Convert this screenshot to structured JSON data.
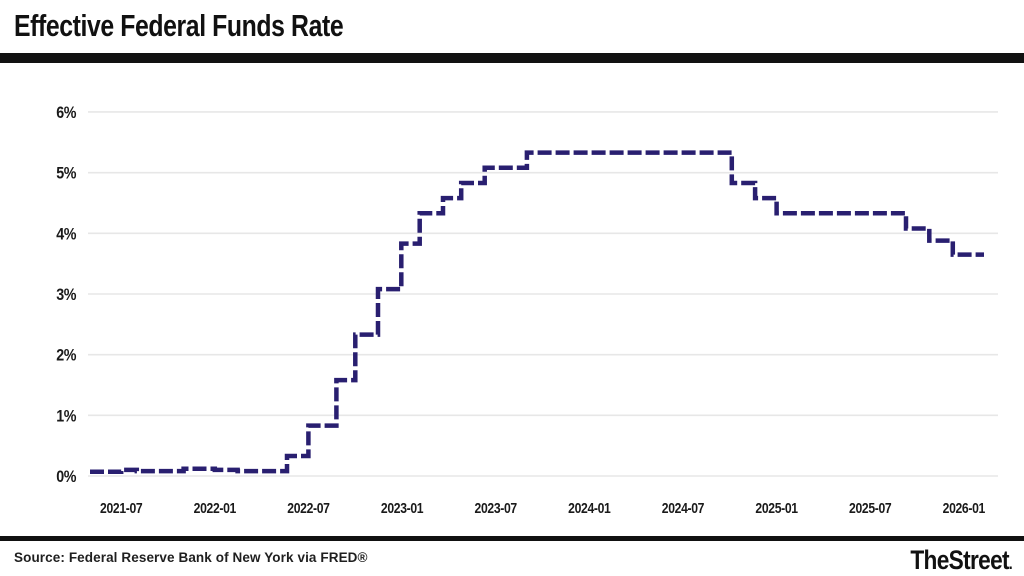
{
  "header": {
    "title": "Effective Federal Funds Rate"
  },
  "footer": {
    "source": "Source: Federal Reserve Bank of New York via FRED®",
    "brand": "TheStreet",
    "brand_dot": "."
  },
  "chart_data": {
    "type": "line",
    "style": "stepped-dashed",
    "title": "Effective Federal Funds Rate",
    "unit": "percent",
    "line_color": "#291f70",
    "grid_color": "#e7e7e7",
    "label_color": "#1a1a1a",
    "grid": "horizontal-only",
    "legend": "none",
    "ylim": [
      0,
      6.3
    ],
    "y_ticks": [
      {
        "value": 0,
        "label": "0%"
      },
      {
        "value": 1,
        "label": "1%"
      },
      {
        "value": 2,
        "label": "2%"
      },
      {
        "value": 3,
        "label": "3%"
      },
      {
        "value": 4,
        "label": "4%"
      },
      {
        "value": 5,
        "label": "5%"
      },
      {
        "value": 6,
        "label": "6%"
      }
    ],
    "x_ticks": [
      "2021-07",
      "2022-01",
      "2022-07",
      "2023-01",
      "2023-07",
      "2024-01",
      "2024-07",
      "2025-01",
      "2025-07",
      "2026-01"
    ],
    "x_range": [
      "2021-05-01",
      "2026-03-01"
    ],
    "series_name": "Effective Federal Funds Rate (%)",
    "points": [
      [
        "2021-05-01",
        0.07
      ],
      [
        "2021-07-01",
        0.1
      ],
      [
        "2021-08-01",
        0.08
      ],
      [
        "2021-11-01",
        0.12
      ],
      [
        "2022-01-01",
        0.1
      ],
      [
        "2022-02-15",
        0.08
      ],
      [
        "2022-05-20",
        0.33
      ],
      [
        "2022-07-01",
        0.83
      ],
      [
        "2022-08-25",
        1.58
      ],
      [
        "2022-10-01",
        2.33
      ],
      [
        "2022-11-15",
        3.08
      ],
      [
        "2022-12-30",
        3.83
      ],
      [
        "2023-02-05",
        4.33
      ],
      [
        "2023-03-20",
        4.58
      ],
      [
        "2023-04-25",
        4.83
      ],
      [
        "2023-06-10",
        5.08
      ],
      [
        "2023-09-01",
        5.33
      ],
      [
        "2024-10-05",
        4.83
      ],
      [
        "2024-11-20",
        4.58
      ],
      [
        "2025-01-01",
        4.33
      ],
      [
        "2025-09-10",
        4.08
      ],
      [
        "2025-10-25",
        3.88
      ],
      [
        "2025-12-10",
        3.65
      ],
      [
        "2026-02-10",
        3.65
      ]
    ]
  }
}
